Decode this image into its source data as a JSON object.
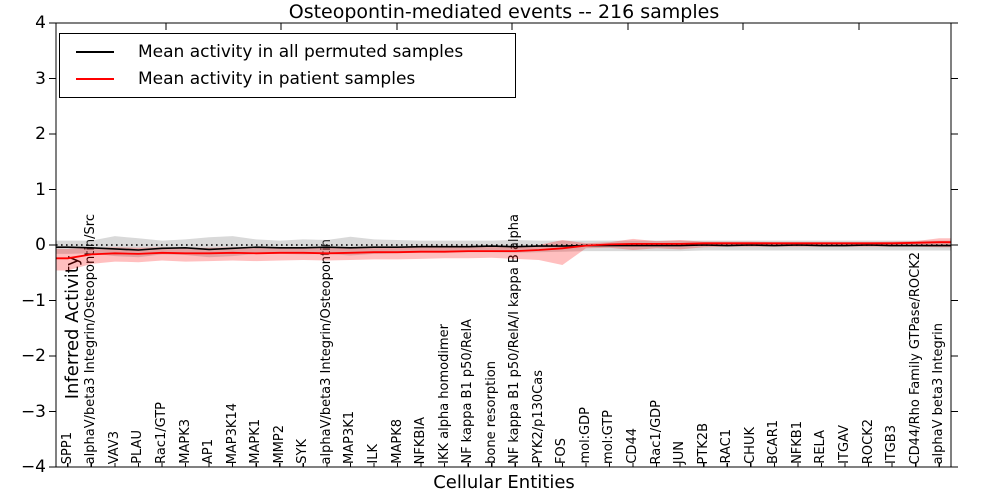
{
  "chart_data": {
    "type": "line",
    "title": "Osteopontin-mediated events -- 216 samples",
    "xlabel": "Cellular Entities",
    "ylabel": "Inferred Activity",
    "ylim": [
      -4,
      4
    ],
    "yticks": [
      4,
      3,
      2,
      1,
      0,
      -1,
      -2,
      -3,
      -4
    ],
    "ytick_labels": [
      "4",
      "3",
      "2",
      "1",
      "0",
      "−1",
      "−2",
      "−3",
      "−4"
    ],
    "grid": false,
    "legend_position": "upper left",
    "zero_line": {
      "value": 0,
      "style": "dotted",
      "color": "#000000"
    },
    "categories": [
      "SPP1",
      "alphaV/beta3 Integrin/Osteopontin/Src",
      "VAV3",
      "PLAU",
      "Rac1/GTP",
      "MAPK3",
      "AP1",
      "MAP3K14",
      "MAPK1",
      "MMP2",
      "SYK",
      "alphaV/beta3 Integrin/Osteopontin",
      "MAP3K1",
      "ILK",
      "MAPK8",
      "NFKBIA",
      "IKK alpha homodimer",
      "NF kappa B1 p50/RelA",
      "bone resorption",
      "NF kappa B1 p50/RelA/I kappa B alpha",
      "PYK2/p130Cas",
      "FOS",
      "mol:GDP",
      "mol:GTP",
      "CD44",
      "Rac1/GDP",
      "JUN",
      "PTK2B",
      "RAC1",
      "CHUK",
      "BCAR1",
      "NFKB1",
      "RELA",
      "ITGAV",
      "ROCK2",
      "ITGB3",
      "CD44/Rho Family GTPase/ROCK2",
      "alphaV beta3 Integrin"
    ],
    "series": [
      {
        "name": "Mean activity in all permuted samples",
        "line_color": "#000000",
        "band_color": "rgba(128,128,128,0.30)",
        "values": [
          -0.04,
          -0.05,
          -0.07,
          -0.09,
          -0.06,
          -0.05,
          -0.08,
          -0.06,
          -0.04,
          -0.05,
          -0.05,
          -0.04,
          -0.05,
          -0.04,
          -0.04,
          -0.03,
          -0.03,
          -0.03,
          -0.02,
          -0.03,
          -0.02,
          -0.02,
          -0.01,
          -0.01,
          -0.01,
          -0.01,
          -0.01,
          0.0,
          -0.01,
          0.0,
          -0.01,
          0.0,
          -0.01,
          -0.01,
          0.0,
          -0.01,
          -0.01,
          -0.01
        ],
        "band_upper": [
          0.08,
          0.08,
          0.16,
          0.12,
          0.08,
          0.1,
          0.14,
          0.16,
          0.1,
          0.08,
          0.1,
          0.09,
          0.15,
          0.1,
          0.09,
          0.08,
          0.08,
          0.08,
          0.08,
          0.09,
          0.08,
          0.08,
          0.08,
          0.08,
          0.08,
          0.08,
          0.08,
          0.08,
          0.08,
          0.08,
          0.08,
          0.08,
          0.08,
          0.08,
          0.08,
          0.08,
          0.08,
          0.08
        ],
        "band_lower": [
          -0.16,
          -0.15,
          -0.2,
          -0.22,
          -0.17,
          -0.18,
          -0.22,
          -0.2,
          -0.16,
          -0.16,
          -0.17,
          -0.16,
          -0.19,
          -0.16,
          -0.15,
          -0.14,
          -0.14,
          -0.13,
          -0.13,
          -0.14,
          -0.13,
          -0.12,
          -0.11,
          -0.11,
          -0.11,
          -0.11,
          -0.11,
          -0.1,
          -0.1,
          -0.1,
          -0.1,
          -0.1,
          -0.1,
          -0.1,
          -0.1,
          -0.1,
          -0.1,
          -0.1
        ]
      },
      {
        "name": "Mean activity in patient samples",
        "line_color": "#ff0000",
        "band_color": "rgba(255,0,0,0.25)",
        "values": [
          -0.24,
          -0.17,
          -0.15,
          -0.16,
          -0.14,
          -0.15,
          -0.15,
          -0.14,
          -0.15,
          -0.14,
          -0.14,
          -0.15,
          -0.14,
          -0.13,
          -0.13,
          -0.12,
          -0.12,
          -0.11,
          -0.11,
          -0.11,
          -0.09,
          -0.06,
          -0.01,
          0.01,
          0.02,
          0.02,
          0.02,
          0.03,
          0.03,
          0.03,
          0.03,
          0.03,
          0.03,
          0.03,
          0.03,
          0.03,
          0.04,
          0.05
        ],
        "band_upper": [
          -0.07,
          -0.05,
          -0.04,
          -0.05,
          -0.04,
          -0.05,
          -0.05,
          -0.04,
          -0.05,
          -0.05,
          -0.04,
          -0.05,
          -0.05,
          -0.04,
          -0.04,
          -0.04,
          -0.04,
          -0.03,
          -0.03,
          -0.02,
          0.0,
          0.09,
          0.03,
          0.05,
          0.11,
          0.07,
          0.09,
          0.06,
          0.06,
          0.06,
          0.05,
          0.05,
          0.05,
          0.05,
          0.05,
          0.06,
          0.07,
          0.12
        ],
        "band_lower": [
          -0.46,
          -0.34,
          -0.3,
          -0.31,
          -0.28,
          -0.3,
          -0.29,
          -0.28,
          -0.29,
          -0.28,
          -0.27,
          -0.28,
          -0.27,
          -0.26,
          -0.26,
          -0.25,
          -0.24,
          -0.24,
          -0.23,
          -0.25,
          -0.27,
          -0.36,
          -0.06,
          -0.05,
          -0.09,
          -0.06,
          -0.08,
          -0.04,
          -0.03,
          -0.03,
          -0.03,
          -0.03,
          -0.03,
          -0.03,
          -0.03,
          -0.03,
          -0.03,
          -0.04
        ]
      }
    ]
  }
}
